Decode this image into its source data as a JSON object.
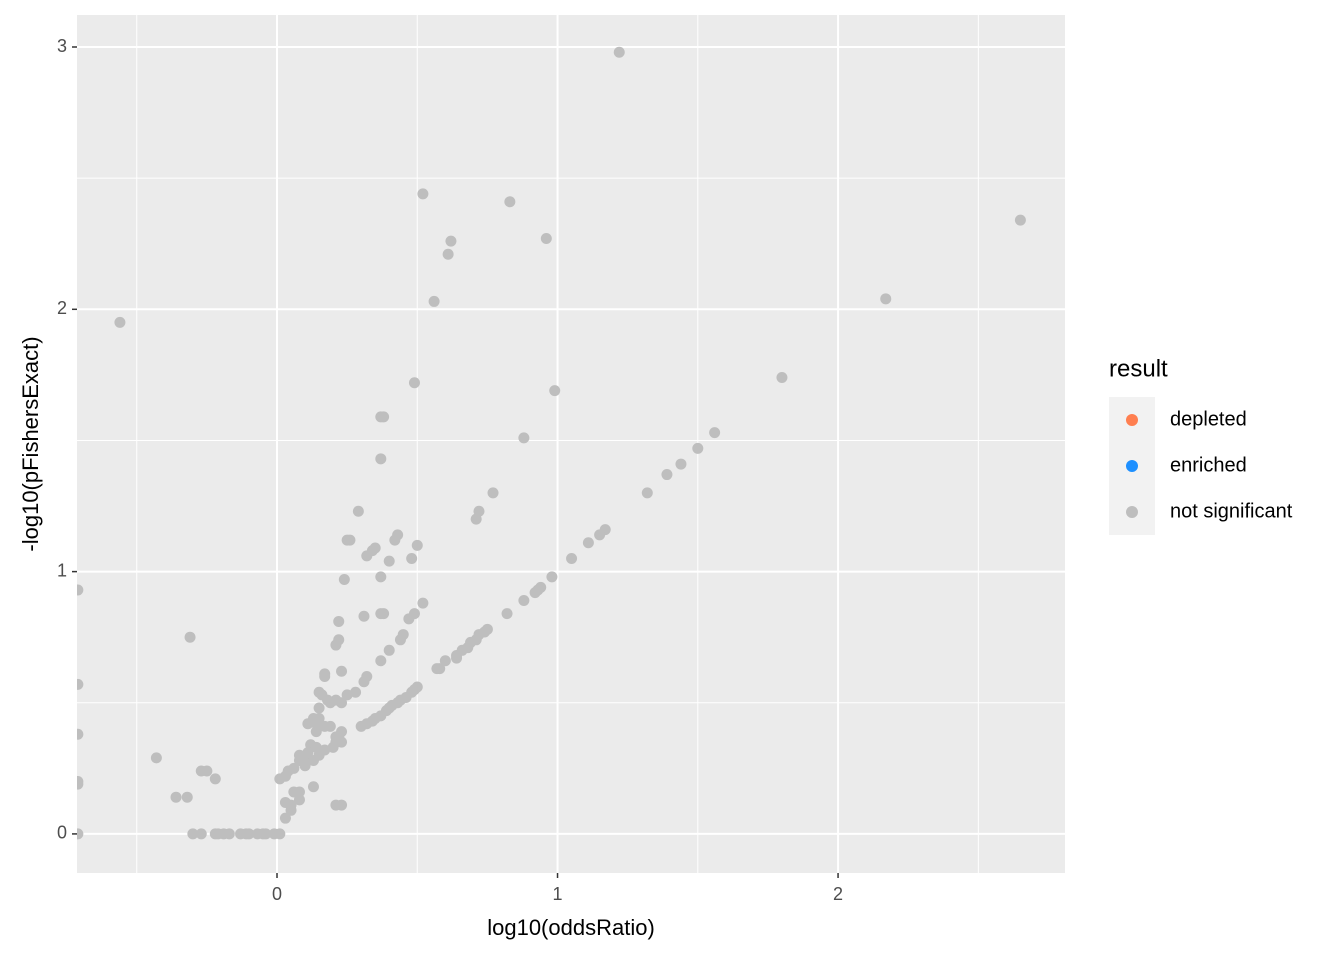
{
  "chart_data": {
    "type": "scatter",
    "x_label": "log10(oddsRatio)",
    "y_label": "-log10(pFishersExact)",
    "xlim": [
      -0.713,
      2.809
    ],
    "ylim": [
      -0.149,
      3.122
    ],
    "xticks": [
      0,
      1,
      2
    ],
    "yticks": [
      0,
      1,
      2,
      3
    ],
    "xminor": [
      -0.5,
      0.5,
      1.5,
      2.5
    ],
    "yminor": [
      0.5,
      1.5,
      2.5
    ],
    "grid": true,
    "legend_title": "result",
    "legend_position": "right",
    "series": [
      {
        "name": "depleted",
        "color": "#ff7f50",
        "x": [],
        "values": []
      },
      {
        "name": "enriched",
        "color": "#1e90ff",
        "x": [],
        "values": []
      },
      {
        "name": "not significant",
        "color": "#bebebe",
        "x": [
          1.22,
          0.52,
          0.83,
          2.65,
          0.96,
          0.62,
          0.61,
          -0.56,
          0.56,
          2.17,
          0.49,
          0.99,
          1.8,
          0.37,
          0.38,
          0.88,
          1.56,
          0.37,
          0.77,
          1.5,
          1.44,
          1.39,
          1.32,
          0.72,
          0.71,
          1.17,
          1.15,
          1.11,
          1.05,
          0.29,
          0.26,
          0.25,
          0.43,
          0.42,
          0.5,
          0.35,
          0.34,
          0.32,
          0.48,
          0.4,
          0.37,
          0.98,
          0.24,
          0.94,
          0.93,
          0.92,
          0.88,
          0.82,
          0.52,
          0.49,
          0.47,
          0.37,
          0.38,
          0.31,
          0.75,
          0.74,
          0.72,
          0.71,
          0.69,
          0.68,
          0.66,
          0.64,
          0.6,
          0.58,
          0.57,
          0.64,
          -0.71,
          0.22,
          -0.31,
          0.22,
          0.21,
          0.45,
          0.44,
          0.4,
          0.37,
          0.17,
          0.17,
          0.23,
          0.32,
          0.31,
          -0.71,
          0.5,
          0.49,
          0.48,
          0.46,
          0.44,
          0.43,
          0.41,
          0.4,
          0.39,
          0.37,
          0.35,
          0.34,
          0.32,
          0.3,
          0.25,
          0.28,
          0.21,
          0.23,
          0.19,
          0.15,
          0.16,
          0.18,
          0.15,
          0.13,
          0.14,
          0.11,
          0.15,
          0.17,
          0.14,
          0.19,
          0.12,
          0.11,
          0.08,
          0.11,
          0.08,
          0.06,
          0.04,
          0.03,
          0.01,
          0.23,
          0.22,
          0.21,
          0.23,
          0.2,
          0.21,
          0.1,
          0.13,
          0.15,
          0.17,
          0.14,
          -0.71,
          -0.43,
          -0.27,
          -0.25,
          -0.22,
          -0.71,
          -0.71,
          -0.36,
          -0.32,
          0.13,
          0.06,
          0.08,
          0.08,
          0.03,
          0.05,
          0.05,
          0.21,
          0.23,
          0.03,
          -0.71,
          -0.3,
          -0.27,
          -0.22,
          -0.21,
          -0.19,
          -0.17,
          -0.13,
          -0.11,
          -0.1,
          -0.07,
          -0.05,
          -0.04,
          -0.01,
          0.01
        ],
        "values": [
          2.98,
          2.44,
          2.41,
          2.34,
          2.27,
          2.26,
          2.21,
          1.95,
          2.03,
          2.04,
          1.72,
          1.69,
          1.74,
          1.59,
          1.59,
          1.51,
          1.53,
          1.43,
          1.3,
          1.47,
          1.41,
          1.37,
          1.3,
          1.23,
          1.2,
          1.16,
          1.14,
          1.11,
          1.05,
          1.23,
          1.12,
          1.12,
          1.14,
          1.12,
          1.1,
          1.09,
          1.08,
          1.06,
          1.05,
          1.04,
          0.98,
          0.98,
          0.97,
          0.94,
          0.93,
          0.92,
          0.89,
          0.84,
          0.88,
          0.84,
          0.82,
          0.84,
          0.84,
          0.83,
          0.78,
          0.77,
          0.76,
          0.74,
          0.73,
          0.71,
          0.7,
          0.68,
          0.66,
          0.63,
          0.63,
          0.67,
          0.93,
          0.81,
          0.75,
          0.74,
          0.72,
          0.76,
          0.74,
          0.7,
          0.66,
          0.61,
          0.6,
          0.62,
          0.6,
          0.58,
          0.57,
          0.56,
          0.55,
          0.54,
          0.52,
          0.51,
          0.5,
          0.49,
          0.48,
          0.47,
          0.45,
          0.44,
          0.43,
          0.42,
          0.41,
          0.53,
          0.54,
          0.51,
          0.5,
          0.5,
          0.54,
          0.53,
          0.51,
          0.48,
          0.44,
          0.42,
          0.42,
          0.44,
          0.41,
          0.39,
          0.41,
          0.34,
          0.31,
          0.3,
          0.28,
          0.28,
          0.25,
          0.24,
          0.22,
          0.21,
          0.39,
          0.37,
          0.35,
          0.35,
          0.33,
          0.37,
          0.26,
          0.28,
          0.3,
          0.32,
          0.33,
          0.38,
          0.29,
          0.24,
          0.24,
          0.21,
          0.2,
          0.19,
          0.14,
          0.14,
          0.18,
          0.16,
          0.16,
          0.13,
          0.12,
          0.11,
          0.09,
          0.11,
          0.11,
          0.06,
          0,
          0,
          0,
          0,
          0,
          0,
          0,
          0,
          0,
          0,
          0,
          0,
          0,
          0,
          0
        ]
      }
    ]
  }
}
